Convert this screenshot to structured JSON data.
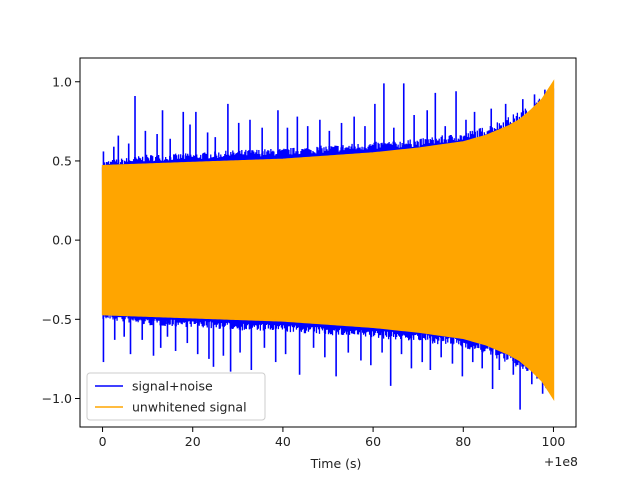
{
  "chart_data": {
    "type": "line",
    "title": "",
    "xlabel": "Time (s)",
    "ylabel": "",
    "x_offset_label": "+1e8",
    "xlim": [
      -5,
      105
    ],
    "ylim": [
      -1.18,
      1.15
    ],
    "xticks": [
      0,
      20,
      40,
      60,
      80,
      100
    ],
    "xtick_labels": [
      "0",
      "20",
      "40",
      "60",
      "80",
      "100"
    ],
    "yticks": [
      -1.0,
      -0.5,
      0.0,
      0.5,
      1.0
    ],
    "ytick_labels": [
      "−1.0",
      "−0.5",
      "0.0",
      "0.5",
      "1.0"
    ],
    "grid": false,
    "legend_position": "lower-left",
    "series": [
      {
        "name": "signal+noise",
        "color": "#0000ff",
        "envelope": {
          "x": [
            0,
            10,
            20,
            30,
            40,
            50,
            60,
            70,
            80,
            85,
            90,
            95,
            100
          ],
          "upper": [
            0.5,
            0.54,
            0.55,
            0.57,
            0.58,
            0.6,
            0.62,
            0.64,
            0.68,
            0.72,
            0.78,
            0.85,
            0.98
          ],
          "lower": [
            -0.5,
            -0.54,
            -0.55,
            -0.57,
            -0.58,
            -0.6,
            -0.62,
            -0.64,
            -0.68,
            -0.72,
            -0.78,
            -0.85,
            -0.98
          ]
        },
        "peaks_upper": [
          {
            "x": 0.2,
            "y": 0.56
          },
          {
            "x": 2.5,
            "y": 0.59
          },
          {
            "x": 3.5,
            "y": 0.66
          },
          {
            "x": 5.8,
            "y": 0.61
          },
          {
            "x": 7.2,
            "y": 0.91
          },
          {
            "x": 9.5,
            "y": 0.69
          },
          {
            "x": 12.1,
            "y": 0.67
          },
          {
            "x": 13.3,
            "y": 0.82
          },
          {
            "x": 15.0,
            "y": 0.64
          },
          {
            "x": 17.9,
            "y": 0.81
          },
          {
            "x": 19.4,
            "y": 0.73
          },
          {
            "x": 20.7,
            "y": 0.81
          },
          {
            "x": 23.3,
            "y": 0.68
          },
          {
            "x": 25.0,
            "y": 0.65
          },
          {
            "x": 27.8,
            "y": 0.86
          },
          {
            "x": 30.2,
            "y": 0.74
          },
          {
            "x": 32.7,
            "y": 0.76
          },
          {
            "x": 35.4,
            "y": 0.71
          },
          {
            "x": 38.9,
            "y": 0.82
          },
          {
            "x": 41.0,
            "y": 0.71
          },
          {
            "x": 43.2,
            "y": 0.78
          },
          {
            "x": 45.5,
            "y": 0.72
          },
          {
            "x": 48.2,
            "y": 0.76
          },
          {
            "x": 50.3,
            "y": 0.69
          },
          {
            "x": 53.0,
            "y": 0.74
          },
          {
            "x": 55.8,
            "y": 0.78
          },
          {
            "x": 58.2,
            "y": 0.72
          },
          {
            "x": 60.4,
            "y": 0.86
          },
          {
            "x": 62.4,
            "y": 0.99
          },
          {
            "x": 64.6,
            "y": 0.71
          },
          {
            "x": 66.8,
            "y": 0.99
          },
          {
            "x": 69.1,
            "y": 0.79
          },
          {
            "x": 72.0,
            "y": 0.82
          },
          {
            "x": 73.8,
            "y": 0.93
          },
          {
            "x": 76.0,
            "y": 0.72
          },
          {
            "x": 78.4,
            "y": 0.94
          },
          {
            "x": 80.6,
            "y": 0.76
          },
          {
            "x": 82.5,
            "y": 0.81
          },
          {
            "x": 86.2,
            "y": 0.83
          },
          {
            "x": 89.4,
            "y": 0.86
          },
          {
            "x": 93.2,
            "y": 0.89
          },
          {
            "x": 95.8,
            "y": 0.92
          },
          {
            "x": 98.1,
            "y": 0.95
          }
        ],
        "peaks_lower": [
          {
            "x": 0.2,
            "y": -0.77
          },
          {
            "x": 2.7,
            "y": -0.63
          },
          {
            "x": 4.8,
            "y": -0.61
          },
          {
            "x": 6.2,
            "y": -0.72
          },
          {
            "x": 8.8,
            "y": -0.63
          },
          {
            "x": 11.3,
            "y": -0.73
          },
          {
            "x": 12.9,
            "y": -0.68
          },
          {
            "x": 14.4,
            "y": -0.61
          },
          {
            "x": 16.2,
            "y": -0.7
          },
          {
            "x": 18.8,
            "y": -0.65
          },
          {
            "x": 21.1,
            "y": -0.72
          },
          {
            "x": 23.6,
            "y": -0.75
          },
          {
            "x": 24.6,
            "y": -0.8
          },
          {
            "x": 26.8,
            "y": -0.73
          },
          {
            "x": 28.4,
            "y": -0.83
          },
          {
            "x": 30.5,
            "y": -0.71
          },
          {
            "x": 33.0,
            "y": -0.82
          },
          {
            "x": 35.9,
            "y": -0.68
          },
          {
            "x": 38.4,
            "y": -0.77
          },
          {
            "x": 40.6,
            "y": -0.72
          },
          {
            "x": 43.7,
            "y": -0.85
          },
          {
            "x": 46.8,
            "y": -0.68
          },
          {
            "x": 49.3,
            "y": -0.74
          },
          {
            "x": 51.8,
            "y": -0.86
          },
          {
            "x": 54.5,
            "y": -0.71
          },
          {
            "x": 57.3,
            "y": -0.76
          },
          {
            "x": 59.5,
            "y": -0.79
          },
          {
            "x": 62.0,
            "y": -0.71
          },
          {
            "x": 63.9,
            "y": -0.92
          },
          {
            "x": 66.3,
            "y": -0.72
          },
          {
            "x": 68.5,
            "y": -0.81
          },
          {
            "x": 70.9,
            "y": -0.77
          },
          {
            "x": 72.7,
            "y": -0.82
          },
          {
            "x": 75.1,
            "y": -0.74
          },
          {
            "x": 77.6,
            "y": -0.78
          },
          {
            "x": 79.8,
            "y": -0.86
          },
          {
            "x": 82.1,
            "y": -0.77
          },
          {
            "x": 84.2,
            "y": -0.81
          },
          {
            "x": 86.5,
            "y": -0.94
          },
          {
            "x": 88.0,
            "y": -0.82
          },
          {
            "x": 91.1,
            "y": -0.85
          },
          {
            "x": 92.6,
            "y": -1.07
          },
          {
            "x": 95.2,
            "y": -0.91
          },
          {
            "x": 97.6,
            "y": -0.97
          }
        ]
      },
      {
        "name": "unwhitened signal",
        "color": "#ffa500",
        "envelope": {
          "x": [
            0,
            10,
            20,
            30,
            40,
            50,
            60,
            70,
            75,
            80,
            85,
            90,
            92.5,
            95,
            97.5,
            100
          ],
          "upper": [
            0.47,
            0.48,
            0.49,
            0.5,
            0.51,
            0.53,
            0.55,
            0.58,
            0.6,
            0.62,
            0.66,
            0.72,
            0.76,
            0.82,
            0.89,
            1.0
          ],
          "lower": [
            -0.47,
            -0.48,
            -0.49,
            -0.5,
            -0.51,
            -0.53,
            -0.55,
            -0.58,
            -0.6,
            -0.62,
            -0.66,
            -0.72,
            -0.76,
            -0.82,
            -0.89,
            -1.0
          ]
        }
      }
    ]
  }
}
